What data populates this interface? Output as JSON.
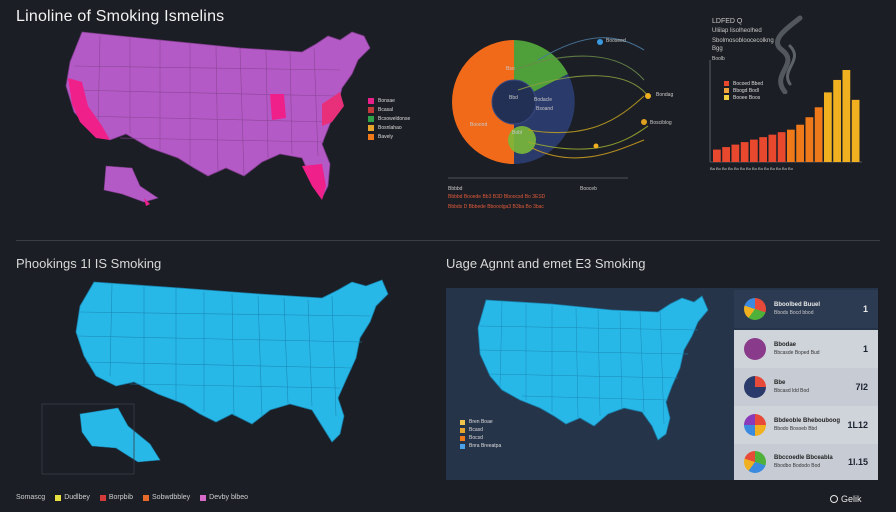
{
  "top": {
    "title": "Linoline of Smoking Ismelins",
    "map_legend": [
      {
        "label": "Bonsae",
        "color": "#e8208a"
      },
      {
        "label": "Bcasal",
        "color": "#c43a3a"
      },
      {
        "label": "Bcsoweldonse",
        "color": "#2fa34a"
      },
      {
        "label": "Bosnlahao",
        "color": "#e8a52e"
      },
      {
        "label": "Bavely",
        "color": "#f07a1a"
      }
    ],
    "donut": {
      "center_label": "Bbd",
      "label_right": "Bodacle",
      "label_left": "Booond",
      "label_top_a": "Bso",
      "label_top_b": "Bsoand",
      "label_lower": "Bobl",
      "label_far_right": "Bosciblog",
      "label_tag1": "Booseed",
      "label_tag2": "Bondag",
      "footer_rows": [
        "Bbbbd   Booede  Bb3  B3D   Bboocsd  Bo 3ESD",
        "Bbbds D Bbbede Bbooolga3   B3ba  Bo  3bac"
      ],
      "footer_head_left": "Bbbbd",
      "footer_head_right": "Booceb"
    },
    "bar_chart": {
      "head1": "LDFED Q",
      "head2": "Uliilap lisolheolhed",
      "head3": "Sbolmosobloocecolkng",
      "head4": "Bgg",
      "head5": "Boolb",
      "legend": [
        {
          "label": "Bocoed Bbed",
          "color": "#e8492e"
        },
        {
          "label": "Bbogd Bodl",
          "color": "#f0a33a"
        },
        {
          "label": "Booee Boos",
          "color": "#f0d040"
        }
      ],
      "tick_labels": "Ba Bo Bo Bo Bo Bo Bo Bo Bo Bo Bo Bo Bo Bo"
    }
  },
  "left_bottom": {
    "title": "Phookings 1I IS Smoking"
  },
  "right_bottom": {
    "title": "Uage Agnnt and emet E3 Smoking",
    "map_legend": [
      {
        "label": "Bren Boae",
        "color": "#f0c34a"
      },
      {
        "label": "Bcasd",
        "color": "#e8a52e"
      },
      {
        "label": "Bocsd",
        "color": "#f07a1a"
      },
      {
        "label": "Bnra Breeatpa",
        "color": "#4aa3e8"
      }
    ],
    "cards": [
      {
        "title": "Bboolbed Buuel",
        "sub": "Bbods Bocd bbod",
        "value": "1"
      },
      {
        "title": "Bbodae",
        "sub": "Bbcasde Boped Bud",
        "value": "1"
      },
      {
        "title": "Bbe",
        "sub": "Bbcasd ldd Bod",
        "value": "7I2"
      },
      {
        "title": "Bbdeoble Bhebouboog",
        "sub": "Bbodo Bosoeb Bbd",
        "value": "1L12"
      },
      {
        "title": "Bbccoedle Bbceabla",
        "sub": "Bbodbo Bododo Bod",
        "value": "1l.15"
      }
    ]
  },
  "footer_legend": [
    {
      "label": "Somascg",
      "color": ""
    },
    {
      "label": "Dudlbey",
      "color": "#e8e040"
    },
    {
      "label": "Borpbib",
      "color": "#d43a3a"
    },
    {
      "label": "Sobwdbbley",
      "color": "#e86a2a"
    },
    {
      "label": "Devby blbeo",
      "color": "#d86ac8"
    }
  ],
  "brand": "Gelik",
  "bar_values": [
    5,
    6,
    7,
    8,
    9,
    10,
    11,
    12,
    13,
    15,
    18,
    22,
    28,
    33,
    37,
    25
  ]
}
